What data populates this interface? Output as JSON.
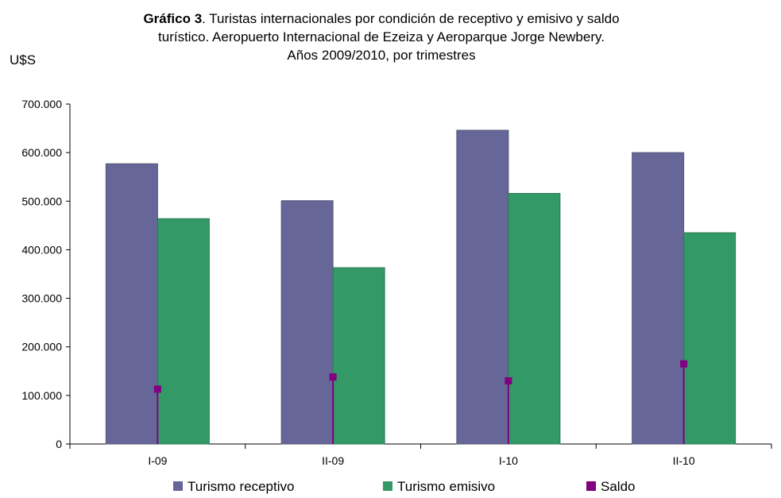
{
  "title": {
    "bold": "Gráfico 3",
    "line1_rest": ". Turistas internacionales por condición de receptivo y emisivo y saldo",
    "line2": "turístico. Aeropuerto Internacional de Ezeiza y Aeroparque Jorge Newbery.",
    "line3": "Años 2009/2010, por trimestres"
  },
  "unit_label": "U$S",
  "colors": {
    "receptivo": "#666699",
    "emisivo": "#339966",
    "saldo": "#800080"
  },
  "chart_data": {
    "type": "bar",
    "categories": [
      "I-09",
      "II-09",
      "I-10",
      "II-10"
    ],
    "series": [
      {
        "name": "Turismo receptivo",
        "kind": "bar",
        "values": [
          577000,
          501000,
          646000,
          600000
        ]
      },
      {
        "name": "Turismo emisivo",
        "kind": "bar",
        "values": [
          464000,
          363000,
          516000,
          435000
        ]
      },
      {
        "name": "Saldo",
        "kind": "marker",
        "values": [
          113000,
          138000,
          130000,
          165000
        ]
      }
    ],
    "ylabel": "U$S",
    "ylim": [
      0,
      700000
    ],
    "yticks": [
      0,
      100000,
      200000,
      300000,
      400000,
      500000,
      600000,
      700000
    ],
    "ytick_labels": [
      "0",
      "100.000",
      "200.000",
      "300.000",
      "400.000",
      "500.000",
      "600.000",
      "700.000"
    ],
    "grid": false,
    "legend_position": "bottom"
  }
}
